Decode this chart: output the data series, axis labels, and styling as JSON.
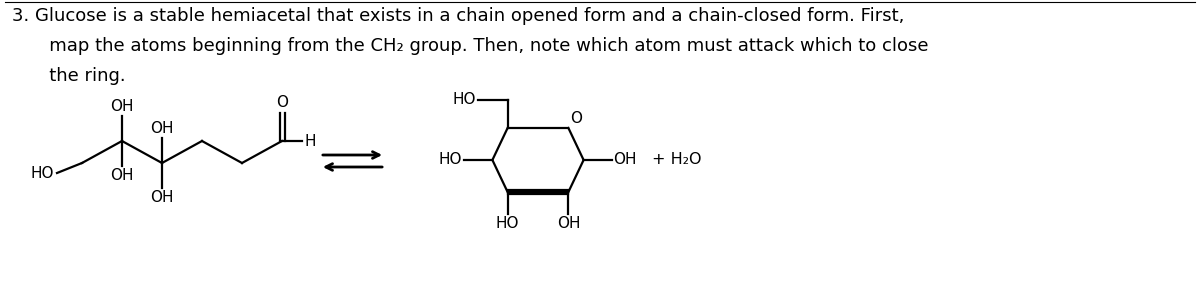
{
  "title_line1": "3. Glucose is a stable hemiacetal that exists in a chain opened form and a chain-closed form. First,",
  "title_line2": "   map the atoms beginning from the CH₂ group. Then, note which atom must attack which to close",
  "title_line3": "   the ring.",
  "bg_color": "#ffffff",
  "line_color": "#000000",
  "text_color": "#000000",
  "font_size_text": 13.0,
  "font_size_label": 11.0,
  "font_family": "DejaVu Sans"
}
